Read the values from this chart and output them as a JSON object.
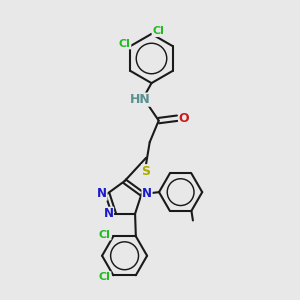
{
  "background_color": "#e8e8e8",
  "bond_color": "#1a1a1a",
  "bond_width": 1.5,
  "atom_colors": {
    "C": "#1a1a1a",
    "H": "#5a9090",
    "N": "#1a1acc",
    "O": "#cc1a1a",
    "S": "#aaaa00",
    "Cl": "#22bb22"
  },
  "font_size": 8.5,
  "fig_size": [
    3.0,
    3.0
  ],
  "dpi": 100
}
